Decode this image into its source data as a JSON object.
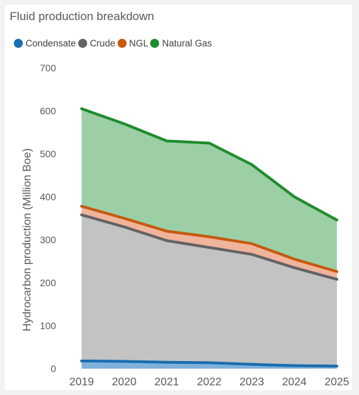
{
  "chart_data": {
    "type": "area",
    "title": "Fluid production breakdown",
    "xlabel": "",
    "ylabel": "Hydrocarbon production (Million Boe)",
    "ylim": [
      0,
      700
    ],
    "yticks": [
      0,
      100,
      200,
      300,
      400,
      500,
      600,
      700
    ],
    "stacked": true,
    "legend_position": "top-left",
    "categories": [
      "2019",
      "2020",
      "2021",
      "2022",
      "2023",
      "2024",
      "2025"
    ],
    "series": [
      {
        "name": "Condensate",
        "color": "#1a6db0",
        "fill": "#7fb1db",
        "values": [
          18,
          17,
          15,
          14,
          10,
          7,
          6
        ]
      },
      {
        "name": "Crude",
        "color": "#636363",
        "fill": "#c3c3c3",
        "values": [
          340,
          313,
          283,
          268,
          256,
          228,
          202
        ]
      },
      {
        "name": "NGL",
        "color": "#c55a11",
        "fill": "#f0b49b",
        "values": [
          20,
          20,
          22,
          25,
          25,
          20,
          18
        ]
      },
      {
        "name": "Natural Gas",
        "color": "#1f8c2e",
        "fill": "#9ccfa6",
        "values": [
          227,
          220,
          210,
          218,
          184,
          145,
          120
        ]
      }
    ]
  }
}
